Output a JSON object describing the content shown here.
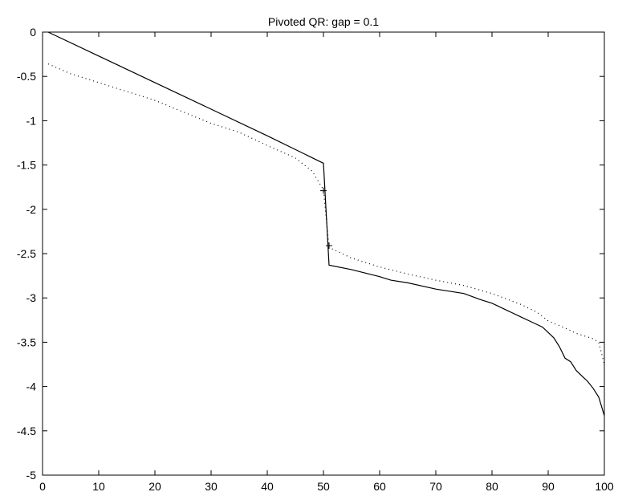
{
  "chart_data": {
    "type": "line",
    "title": "Pivoted QR: gap = 0.1",
    "xlabel": "",
    "ylabel": "",
    "xlim": [
      0,
      100
    ],
    "ylim": [
      -5,
      0
    ],
    "xticks": [
      0,
      10,
      20,
      30,
      40,
      50,
      60,
      70,
      80,
      90,
      100
    ],
    "yticks": [
      0,
      -0.5,
      -1,
      -1.5,
      -2,
      -2.5,
      -3,
      -3.5,
      -4,
      -4.5,
      -5
    ],
    "xtick_labels": [
      "0",
      "10",
      "20",
      "30",
      "40",
      "50",
      "60",
      "70",
      "80",
      "90",
      "100"
    ],
    "ytick_labels": [
      "0",
      "-0.5",
      "-1",
      "-1.5",
      "-2",
      "-2.5",
      "-3",
      "-3.5",
      "-4",
      "-4.5",
      "-5"
    ],
    "grid": false,
    "series": [
      {
        "style": "solid",
        "color": "#000000",
        "points": [
          [
            1,
            0.0
          ],
          [
            10,
            -0.27
          ],
          [
            20,
            -0.57
          ],
          [
            30,
            -0.87
          ],
          [
            40,
            -1.17
          ],
          [
            50,
            -1.48
          ],
          [
            51,
            -2.63
          ],
          [
            55,
            -2.68
          ],
          [
            60,
            -2.76
          ],
          [
            62,
            -2.8
          ],
          [
            65,
            -2.83
          ],
          [
            70,
            -2.9
          ],
          [
            75,
            -2.95
          ],
          [
            78,
            -3.02
          ],
          [
            80,
            -3.06
          ],
          [
            83,
            -3.15
          ],
          [
            85,
            -3.21
          ],
          [
            87,
            -3.27
          ],
          [
            89,
            -3.33
          ],
          [
            91,
            -3.45
          ],
          [
            92,
            -3.55
          ],
          [
            93,
            -3.68
          ],
          [
            94,
            -3.72
          ],
          [
            95,
            -3.82
          ],
          [
            96,
            -3.88
          ],
          [
            97,
            -3.94
          ],
          [
            98,
            -4.02
          ],
          [
            99,
            -4.12
          ],
          [
            100,
            -4.33
          ]
        ]
      },
      {
        "style": "dotted",
        "color": "#000000",
        "points": [
          [
            1,
            -0.36
          ],
          [
            5,
            -0.47
          ],
          [
            10,
            -0.57
          ],
          [
            15,
            -0.67
          ],
          [
            20,
            -0.77
          ],
          [
            25,
            -0.9
          ],
          [
            30,
            -1.03
          ],
          [
            35,
            -1.13
          ],
          [
            40,
            -1.28
          ],
          [
            45,
            -1.42
          ],
          [
            48,
            -1.57
          ],
          [
            50,
            -1.78
          ],
          [
            51,
            -2.43
          ],
          [
            55,
            -2.55
          ],
          [
            60,
            -2.65
          ],
          [
            65,
            -2.73
          ],
          [
            70,
            -2.8
          ],
          [
            75,
            -2.86
          ],
          [
            80,
            -2.95
          ],
          [
            85,
            -3.07
          ],
          [
            88,
            -3.16
          ],
          [
            90,
            -3.26
          ],
          [
            93,
            -3.34
          ],
          [
            95,
            -3.4
          ],
          [
            97,
            -3.44
          ],
          [
            98,
            -3.46
          ],
          [
            99,
            -3.5
          ],
          [
            100,
            -3.75
          ]
        ]
      },
      {
        "style": "markers",
        "marker": "+",
        "color": "#000000",
        "points": [
          [
            50,
            -1.79
          ],
          [
            51,
            -2.41
          ]
        ]
      }
    ]
  }
}
